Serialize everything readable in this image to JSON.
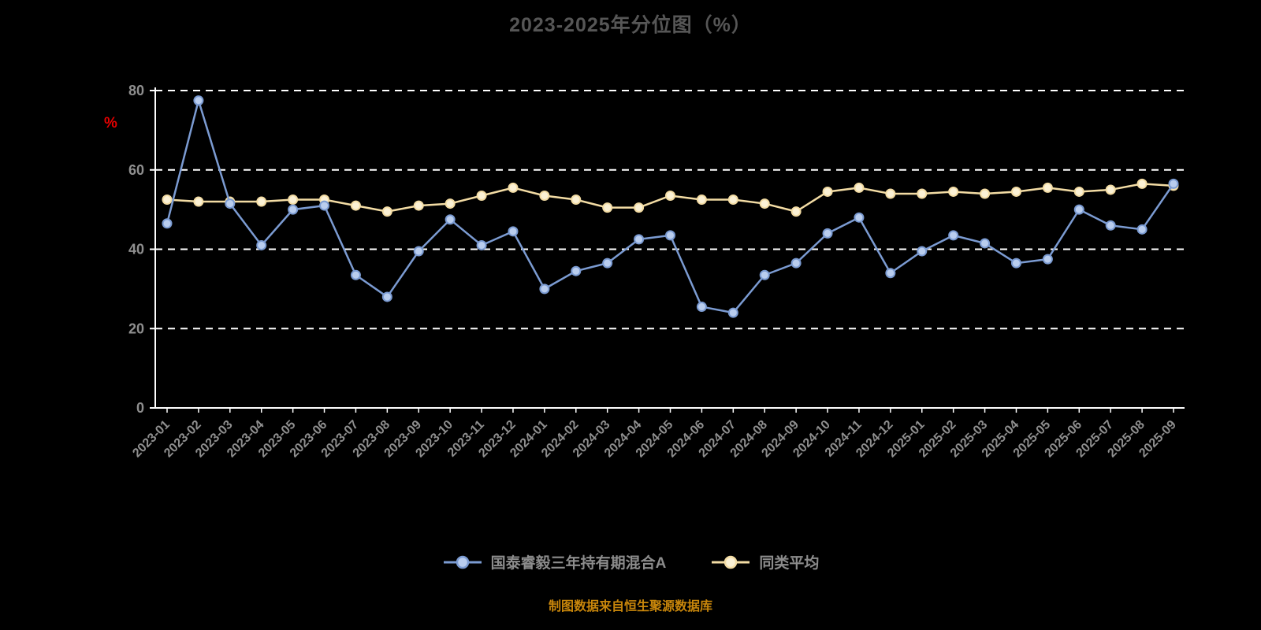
{
  "title": "2023-2025年分位图（%）",
  "y_axis_unit_label": "%",
  "source_note": "制图数据来自恒生聚源数据库",
  "colors": {
    "background": "#000000",
    "grid": "#ffffff",
    "axis": "#ffffff",
    "title_text": "#565656",
    "tick_text": "#8f8f8f",
    "legend_text": "#8c8c8c",
    "source_text": "#c8860b",
    "y_unit_text": "#e60000"
  },
  "chart_data": {
    "type": "line",
    "title": "2023-2025年分位图（%）",
    "xlabel": "",
    "ylabel": "%",
    "ylim": [
      0,
      80
    ],
    "yticks": [
      0,
      20,
      40,
      60,
      80
    ],
    "grid": "horizontal-dashed",
    "legend_position": "bottom",
    "categories": [
      "2023-01",
      "2023-02",
      "2023-03",
      "2023-04",
      "2023-05",
      "2023-06",
      "2023-07",
      "2023-08",
      "2023-09",
      "2023-10",
      "2023-11",
      "2023-12",
      "2024-01",
      "2024-02",
      "2024-03",
      "2024-04",
      "2024-05",
      "2024-06",
      "2024-07",
      "2024-08",
      "2024-09",
      "2024-10",
      "2024-11",
      "2024-12",
      "2025-01",
      "2025-02",
      "2025-03",
      "2025-04",
      "2025-05",
      "2025-06",
      "2025-07",
      "2025-08",
      "2025-09"
    ],
    "series": [
      {
        "name": "国泰睿毅三年持有期混合A",
        "color": "#7b9bd2",
        "marker_fill": "#b9cdee",
        "values": [
          46.5,
          77.5,
          51.5,
          41,
          50,
          51,
          33.5,
          28,
          39.5,
          47.5,
          41,
          44.5,
          30,
          34.5,
          36.5,
          42.5,
          43.5,
          25.5,
          24,
          33.5,
          36.5,
          44,
          48,
          34,
          39.5,
          43.5,
          41.5,
          36.5,
          37.5,
          50,
          46,
          45,
          56.5
        ]
      },
      {
        "name": "同类平均",
        "color": "#f3dca4",
        "marker_fill": "#fbf1d5",
        "values": [
          52.5,
          52,
          52,
          52,
          52.5,
          52.5,
          51,
          49.5,
          51,
          51.5,
          53.5,
          55.5,
          53.5,
          52.5,
          50.5,
          50.5,
          53.5,
          52.5,
          52.5,
          51.5,
          49.5,
          54.5,
          55.5,
          54,
          54,
          54.5,
          54,
          54.5,
          55.5,
          54.5,
          55,
          56.5,
          56
        ]
      }
    ]
  }
}
